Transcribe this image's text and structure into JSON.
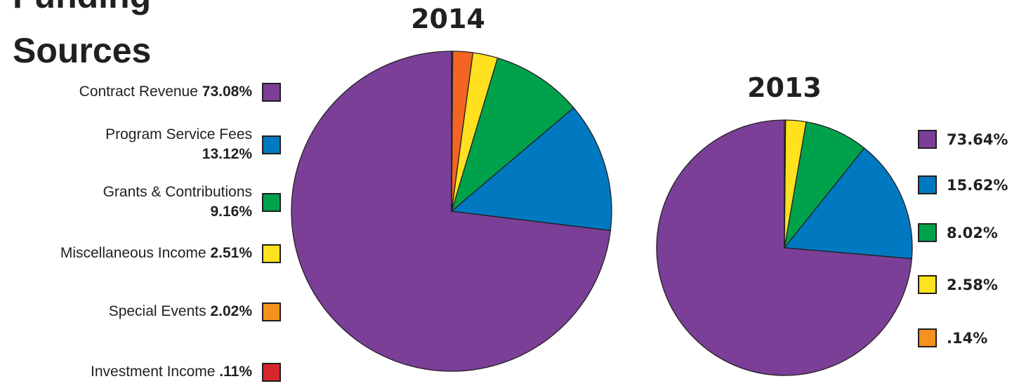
{
  "heading": {
    "line1": "Funding",
    "line2": "Sources"
  },
  "colors": {
    "contract": "#7b3f98",
    "program": "#0079c1",
    "grants": "#00a14b",
    "misc": "#ffe11f",
    "events": "#f6901e",
    "events_2014_slice": "#f26522",
    "investment": "#d7262c"
  },
  "legend_2014": [
    {
      "label": "Contract Revenue",
      "value": "73.08%",
      "color": "#7b3f98"
    },
    {
      "label": "Program Service Fees",
      "value": "13.12%",
      "color": "#0079c1"
    },
    {
      "label": "Grants & Contributions",
      "value": "9.16%",
      "color": "#00a14b"
    },
    {
      "label": "Miscellaneous Income",
      "value": "2.51%",
      "color": "#ffe11f"
    },
    {
      "label": "Special Events",
      "value": "2.02%",
      "color": "#f6901e"
    },
    {
      "label": "Investment Income",
      "value": ".11%",
      "color": "#d7262c"
    }
  ],
  "legend_2013": [
    {
      "value": "73.64%",
      "color": "#7b3f98"
    },
    {
      "value": "15.62%",
      "color": "#0079c1"
    },
    {
      "value": "8.02%",
      "color": "#00a14b"
    },
    {
      "value": "2.58%",
      "color": "#ffe11f"
    },
    {
      "value": ".14%",
      "color": "#f6901e"
    }
  ],
  "chart_data": [
    {
      "type": "pie",
      "title": "2014",
      "categories": [
        "Contract Revenue",
        "Program Service Fees",
        "Grants & Contributions",
        "Miscellaneous Income",
        "Special Events",
        "Investment Income"
      ],
      "values": [
        73.08,
        13.12,
        9.16,
        2.51,
        2.02,
        0.11
      ],
      "colors": [
        "#7b3f98",
        "#0079c1",
        "#00a14b",
        "#ffe11f",
        "#f26522",
        "#d7262c"
      ],
      "legend": "left"
    },
    {
      "type": "pie",
      "title": "2013",
      "categories": [
        "Contract Revenue",
        "Program Service Fees",
        "Grants & Contributions",
        "Miscellaneous Income",
        "Special Events"
      ],
      "values": [
        73.64,
        15.62,
        8.02,
        2.58,
        0.14
      ],
      "colors": [
        "#7b3f98",
        "#0079c1",
        "#00a14b",
        "#ffe11f",
        "#f6901e"
      ],
      "legend": "right"
    }
  ]
}
